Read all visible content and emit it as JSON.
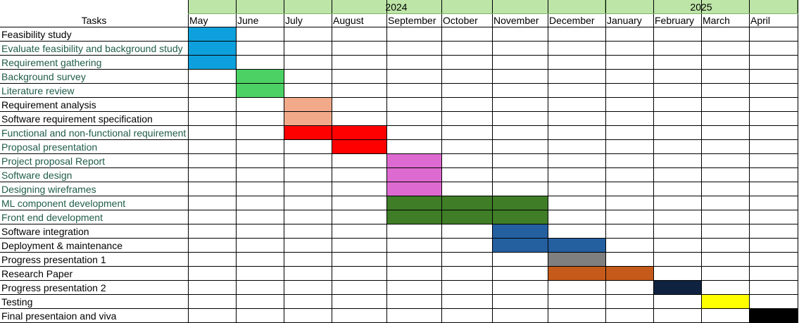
{
  "chart_data": {
    "type": "gantt",
    "header_label": "Tasks",
    "years": [
      {
        "label": "2024",
        "start": 0,
        "span": 8
      },
      {
        "label": "2025",
        "start": 8,
        "span": 4
      }
    ],
    "months": [
      "May",
      "June",
      "July",
      "August",
      "September",
      "October",
      "November",
      "December",
      "January",
      "February",
      "March",
      "April"
    ],
    "tasks": [
      {
        "name": "Feasibility study",
        "start": 0,
        "end": 0,
        "color": "#0ea0dc",
        "text_color": "#000000"
      },
      {
        "name": "Evaluate feasibility and background study",
        "start": 0,
        "end": 0,
        "color": "#0ea0dc",
        "text_color": "#1f5c4a"
      },
      {
        "name": "Requirement gathering",
        "start": 0,
        "end": 0,
        "color": "#0ea0dc",
        "text_color": "#1f5c4a"
      },
      {
        "name": "Background survey",
        "start": 1,
        "end": 1,
        "color": "#4cd164",
        "text_color": "#1f5c4a"
      },
      {
        "name": "Literature review",
        "start": 1,
        "end": 1,
        "color": "#4cd164",
        "text_color": "#1f5c4a"
      },
      {
        "name": "Requirement analysis",
        "start": 2,
        "end": 2,
        "color": "#f2a98a",
        "text_color": "#000000"
      },
      {
        "name": "Software requirement specification",
        "start": 2,
        "end": 2,
        "color": "#f2a98a",
        "text_color": "#000000"
      },
      {
        "name": "Functional and non-functional requirement",
        "start": 2,
        "end": 3,
        "color": "#ff0000",
        "text_color": "#1f5c4a"
      },
      {
        "name": "Proposal presentation",
        "start": 3,
        "end": 3,
        "color": "#ff0000",
        "text_color": "#1f5c4a"
      },
      {
        "name": "Project proposal Report",
        "start": 4,
        "end": 4,
        "color": "#dd6ad0",
        "text_color": "#1f5c4a"
      },
      {
        "name": "Software design",
        "start": 4,
        "end": 4,
        "color": "#dd6ad0",
        "text_color": "#1f5c4a"
      },
      {
        "name": "Designing wireframes",
        "start": 4,
        "end": 4,
        "color": "#dd6ad0",
        "text_color": "#1f5c4a"
      },
      {
        "name": "ML component development",
        "start": 4,
        "end": 6,
        "color": "#3f7d27",
        "text_color": "#1f5c4a"
      },
      {
        "name": "Front end development",
        "start": 4,
        "end": 6,
        "color": "#3f7d27",
        "text_color": "#1f5c4a"
      },
      {
        "name": "Software integration",
        "start": 6,
        "end": 6,
        "color": "#245fa0",
        "text_color": "#000000"
      },
      {
        "name": "Deployment & maintenance",
        "start": 6,
        "end": 7,
        "color": "#245fa0",
        "text_color": "#000000"
      },
      {
        "name": "Progress presentation 1",
        "start": 7,
        "end": 7,
        "color": "#7f7f7f",
        "text_color": "#000000"
      },
      {
        "name": "Research Paper",
        "start": 7,
        "end": 8,
        "color": "#c55a1a",
        "text_color": "#000000"
      },
      {
        "name": "Progress presentation 2",
        "start": 9,
        "end": 9,
        "color": "#0f2340",
        "text_color": "#000000"
      },
      {
        "name": "Testing",
        "start": 10,
        "end": 10,
        "color": "#ffff00",
        "text_color": "#000000"
      },
      {
        "name": "Final presentaion and viva",
        "start": 11,
        "end": 11,
        "color": "#000000",
        "text_color": "#000000"
      }
    ]
  }
}
